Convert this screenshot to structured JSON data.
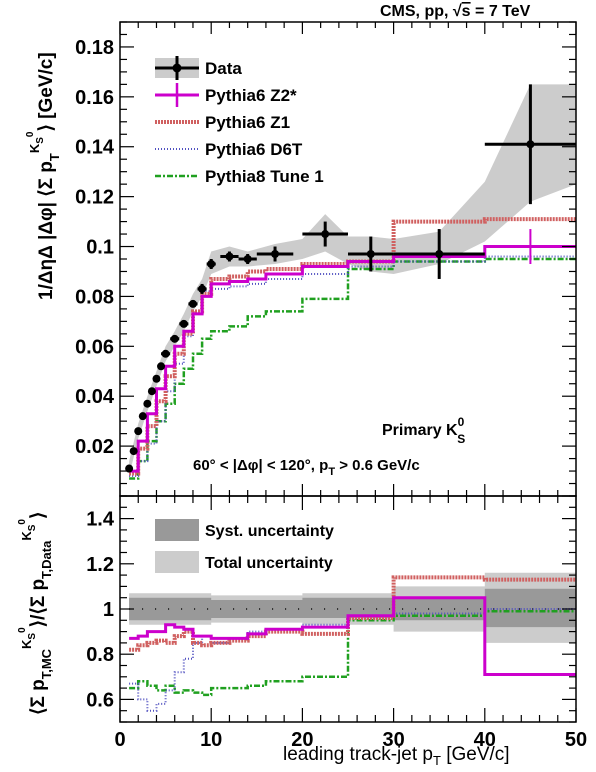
{
  "header": "CMS, pp, √s = 7 TeV",
  "colors": {
    "data": "#000000",
    "z2star": "#cc00cc",
    "z1": "#d06060",
    "d6t": "#5050c0",
    "tune1": "#20a020",
    "syst_band": "#999999",
    "total_band": "#cccccc",
    "top_band": "#cccccc"
  },
  "legend_top": [
    {
      "key": "data",
      "label": "Data"
    },
    {
      "key": "z2star",
      "label": "Pythia6 Z2*"
    },
    {
      "key": "z1",
      "label": "Pythia6 Z1"
    },
    {
      "key": "d6t",
      "label": "Pythia6 D6T"
    },
    {
      "key": "tune1",
      "label": "Pythia8 Tune 1"
    }
  ],
  "legend_bottom": [
    {
      "key": "syst",
      "label": "Syst. uncertainty"
    },
    {
      "key": "total",
      "label": "Total uncertainty"
    }
  ],
  "annotation_primary": "Primary K",
  "annotation_primary_sup": "0",
  "annotation_primary_sub": "S",
  "annotation_cuts": "60° < |Δφ| < 120°, p",
  "annotation_cuts_sub": "T",
  "annotation_cuts_end": " > 0.6 GeV/c",
  "ylabel_top": "1/ΔηΔ |Δφ| ⟨Σ p_T^{K_S^0}⟩ [GeV/c]",
  "ylabel_bottom": "⟨Σ p_{T,MC}^{K_S^0}⟩/⟨Σ p_{T,Data}^{K_S^0}⟩",
  "xlabel_main": "leading track-jet p",
  "xlabel_sub": "T",
  "xlabel_unit": " [GeV/c]",
  "chart_data": [
    {
      "type": "scatter",
      "xlim": [
        0,
        50
      ],
      "ylim": [
        0,
        0.19
      ],
      "x_ticks": [
        0,
        10,
        20,
        30,
        40,
        50
      ],
      "y_ticks": [
        0.02,
        0.04,
        0.06,
        0.08,
        0.1,
        0.12,
        0.14,
        0.16,
        0.18
      ],
      "data": {
        "x": [
          1,
          1.5,
          2,
          2.5,
          3,
          3.5,
          4,
          4.5,
          5,
          6,
          7,
          8,
          9,
          10,
          12,
          14,
          17,
          22.5,
          27.5,
          35,
          45
        ],
        "y": [
          0.011,
          0.018,
          0.026,
          0.032,
          0.037,
          0.042,
          0.047,
          0.052,
          0.057,
          0.063,
          0.069,
          0.077,
          0.083,
          0.093,
          0.096,
          0.095,
          0.097,
          0.105,
          0.097,
          0.097,
          0.141
        ],
        "xerr": [
          0.25,
          0.25,
          0.25,
          0.25,
          0.25,
          0.25,
          0.25,
          0.25,
          0.5,
          0.5,
          0.5,
          0.5,
          0.5,
          0.5,
          1,
          1,
          2,
          2.5,
          2.5,
          5,
          5
        ],
        "yerr": [
          0.001,
          0.001,
          0.001,
          0.001,
          0.001,
          0.001,
          0.001,
          0.001,
          0.001,
          0.001,
          0.001,
          0.001,
          0.002,
          0.002,
          0.002,
          0.002,
          0.003,
          0.005,
          0.007,
          0.01,
          0.024
        ]
      },
      "band": {
        "x": [
          1,
          2,
          3,
          4,
          5,
          6,
          7,
          8,
          9,
          10,
          12,
          14,
          17,
          20,
          22.5,
          25,
          27.5,
          30,
          35,
          40,
          45,
          50
        ],
        "low": [
          0.008,
          0.023,
          0.034,
          0.044,
          0.054,
          0.06,
          0.066,
          0.074,
          0.08,
          0.089,
          0.092,
          0.092,
          0.093,
          0.095,
          0.098,
          0.093,
          0.09,
          0.089,
          0.093,
          0.102,
          0.118,
          0.125
        ],
        "high": [
          0.014,
          0.029,
          0.04,
          0.05,
          0.06,
          0.066,
          0.073,
          0.081,
          0.087,
          0.098,
          0.1,
          0.098,
          0.101,
          0.103,
          0.113,
          0.104,
          0.104,
          0.103,
          0.106,
          0.126,
          0.165,
          0.165
        ]
      },
      "models": {
        "z2star": {
          "edges": [
            1,
            2,
            3,
            4,
            5,
            6,
            7,
            8,
            9,
            10,
            12,
            14,
            16,
            20,
            25,
            30,
            40,
            50
          ],
          "values": [
            0.01,
            0.022,
            0.033,
            0.043,
            0.052,
            0.06,
            0.066,
            0.073,
            0.08,
            0.085,
            0.086,
            0.087,
            0.089,
            0.092,
            0.094,
            0.096,
            0.1
          ]
        },
        "z1": {
          "edges": [
            1,
            2,
            3,
            4,
            5,
            6,
            7,
            8,
            9,
            10,
            12,
            14,
            16,
            20,
            25,
            30,
            40,
            50
          ],
          "values": [
            0.009,
            0.019,
            0.028,
            0.038,
            0.048,
            0.057,
            0.065,
            0.074,
            0.081,
            0.087,
            0.088,
            0.09,
            0.091,
            0.093,
            0.094,
            0.11,
            0.111
          ]
        },
        "d6t": {
          "edges": [
            1,
            2,
            3,
            4,
            5,
            6,
            7,
            8,
            9,
            10,
            12,
            14,
            16,
            20,
            25,
            30,
            40,
            50
          ],
          "values": [
            0.008,
            0.014,
            0.021,
            0.03,
            0.042,
            0.053,
            0.064,
            0.073,
            0.082,
            0.083,
            0.084,
            0.085,
            0.087,
            0.089,
            0.092,
            0.094,
            0.096
          ]
        },
        "tune1": {
          "edges": [
            1,
            2,
            3,
            4,
            5,
            6,
            7,
            8,
            9,
            10,
            12,
            14,
            16,
            20,
            25,
            30,
            40,
            50
          ],
          "values": [
            0.007,
            0.014,
            0.022,
            0.03,
            0.037,
            0.045,
            0.051,
            0.057,
            0.063,
            0.066,
            0.068,
            0.072,
            0.074,
            0.079,
            0.091,
            0.094,
            0.095
          ]
        }
      }
    },
    {
      "type": "line",
      "xlim": [
        0,
        50
      ],
      "ylim": [
        0.5,
        1.5
      ],
      "x_ticks": [
        0,
        10,
        20,
        30,
        40,
        50
      ],
      "y_ticks": [
        0.6,
        0.8,
        1.0,
        1.2,
        1.4
      ],
      "y_tick_labels": [
        "0.6",
        "0.8",
        "1",
        "1.2",
        "1.4"
      ],
      "syst_band": {
        "edges": [
          1,
          5,
          10,
          20,
          30,
          40,
          50
        ],
        "low": [
          0.95,
          0.95,
          0.96,
          0.96,
          0.95,
          0.92,
          0.9
        ],
        "high": [
          1.05,
          1.05,
          1.04,
          1.05,
          1.05,
          1.09,
          1.11
        ]
      },
      "total_band": {
        "edges": [
          1,
          5,
          10,
          20,
          30,
          40,
          50
        ],
        "low": [
          0.93,
          0.93,
          0.94,
          0.93,
          0.9,
          0.85,
          0.84
        ],
        "high": [
          1.07,
          1.07,
          1.06,
          1.07,
          1.1,
          1.16,
          1.2
        ]
      },
      "models": {
        "z2star": {
          "edges": [
            1,
            2,
            3,
            4,
            5,
            6,
            7,
            8,
            9,
            10,
            12,
            14,
            16,
            20,
            25,
            30,
            40,
            50
          ],
          "values": [
            0.87,
            0.88,
            0.9,
            0.9,
            0.93,
            0.92,
            0.91,
            0.88,
            0.88,
            0.87,
            0.87,
            0.89,
            0.91,
            0.92,
            0.97,
            1.05,
            0.71
          ]
        },
        "z1": {
          "edges": [
            1,
            2,
            3,
            4,
            5,
            6,
            7,
            8,
            9,
            10,
            12,
            14,
            16,
            20,
            25,
            30,
            40,
            50
          ],
          "values": [
            0.82,
            0.84,
            0.85,
            0.86,
            0.85,
            0.88,
            0.9,
            0.85,
            0.84,
            0.85,
            0.86,
            0.88,
            0.9,
            0.89,
            0.96,
            1.14,
            1.13
          ]
        },
        "d6t": {
          "edges": [
            1,
            2,
            3,
            4,
            5,
            6,
            7,
            8,
            9,
            10,
            12,
            14,
            16,
            20,
            25,
            30,
            40,
            50
          ],
          "values": [
            0.67,
            0.6,
            0.55,
            0.58,
            0.64,
            0.72,
            0.78,
            0.85,
            0.88,
            0.85,
            0.87,
            0.9,
            0.91,
            0.93,
            0.96,
            0.98,
            1.0
          ]
        },
        "tune1": {
          "edges": [
            1,
            2,
            3,
            4,
            5,
            6,
            7,
            8,
            9,
            10,
            12,
            14,
            16,
            20,
            25,
            30,
            40,
            50
          ],
          "values": [
            0.65,
            0.68,
            0.66,
            0.64,
            0.66,
            0.63,
            0.64,
            0.63,
            0.62,
            0.65,
            0.65,
            0.66,
            0.68,
            0.7,
            0.95,
            0.97,
            0.99
          ]
        }
      },
      "reference": 1.0
    }
  ]
}
